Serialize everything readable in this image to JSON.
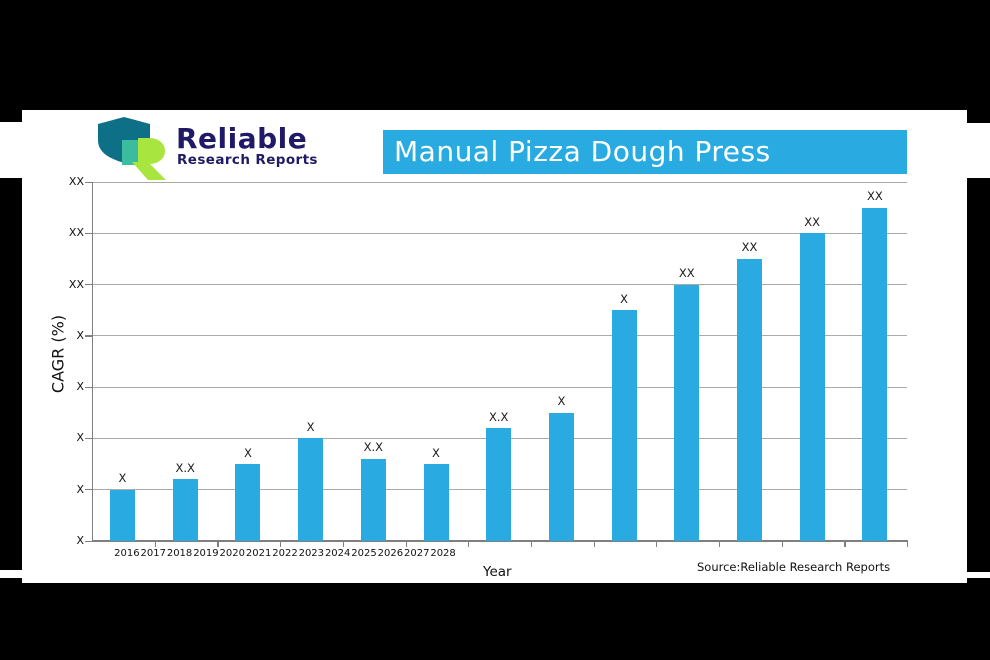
{
  "logo": {
    "title": "Reliable",
    "subtitle": "Research Reports",
    "colors": {
      "shield": "#0E7086",
      "square": "#3BBC9E",
      "swoosh": "#A8E63F",
      "text": "#201A66"
    }
  },
  "banner": {
    "title": "Manual Pizza Dough Press",
    "bg": "#29ABE2",
    "text_color": "#FFFFFF"
  },
  "footer": {
    "source_prefix": "Source:",
    "source_name": "Reliable Research Reports"
  },
  "chart_data": {
    "type": "bar",
    "title": "Manual Pizza Dough Press",
    "xlabel": "Year",
    "ylabel": "CAGR (%)",
    "categories": [
      "2016",
      "2017",
      "2018",
      "2019",
      "2020",
      "2021",
      "2022",
      "2023",
      "2024",
      "2025",
      "2026",
      "2027",
      "2028"
    ],
    "values": [
      1.0,
      1.2,
      1.5,
      2.0,
      1.6,
      1.5,
      2.2,
      2.5,
      4.5,
      5.0,
      5.5,
      6.0,
      6.5
    ],
    "bar_labels": [
      "X",
      "X.X",
      "X",
      "X",
      "X.X",
      "X",
      "X.X",
      "X",
      "X",
      "XX",
      "XX",
      "XX",
      "XX"
    ],
    "ytick_labels_bottom_to_top": [
      "X",
      "X",
      "X",
      "X",
      "X",
      "XX",
      "XX",
      "XX"
    ],
    "ylim": [
      0,
      7
    ],
    "grid": true,
    "legend": null,
    "bar_color": "#29ABE2"
  }
}
